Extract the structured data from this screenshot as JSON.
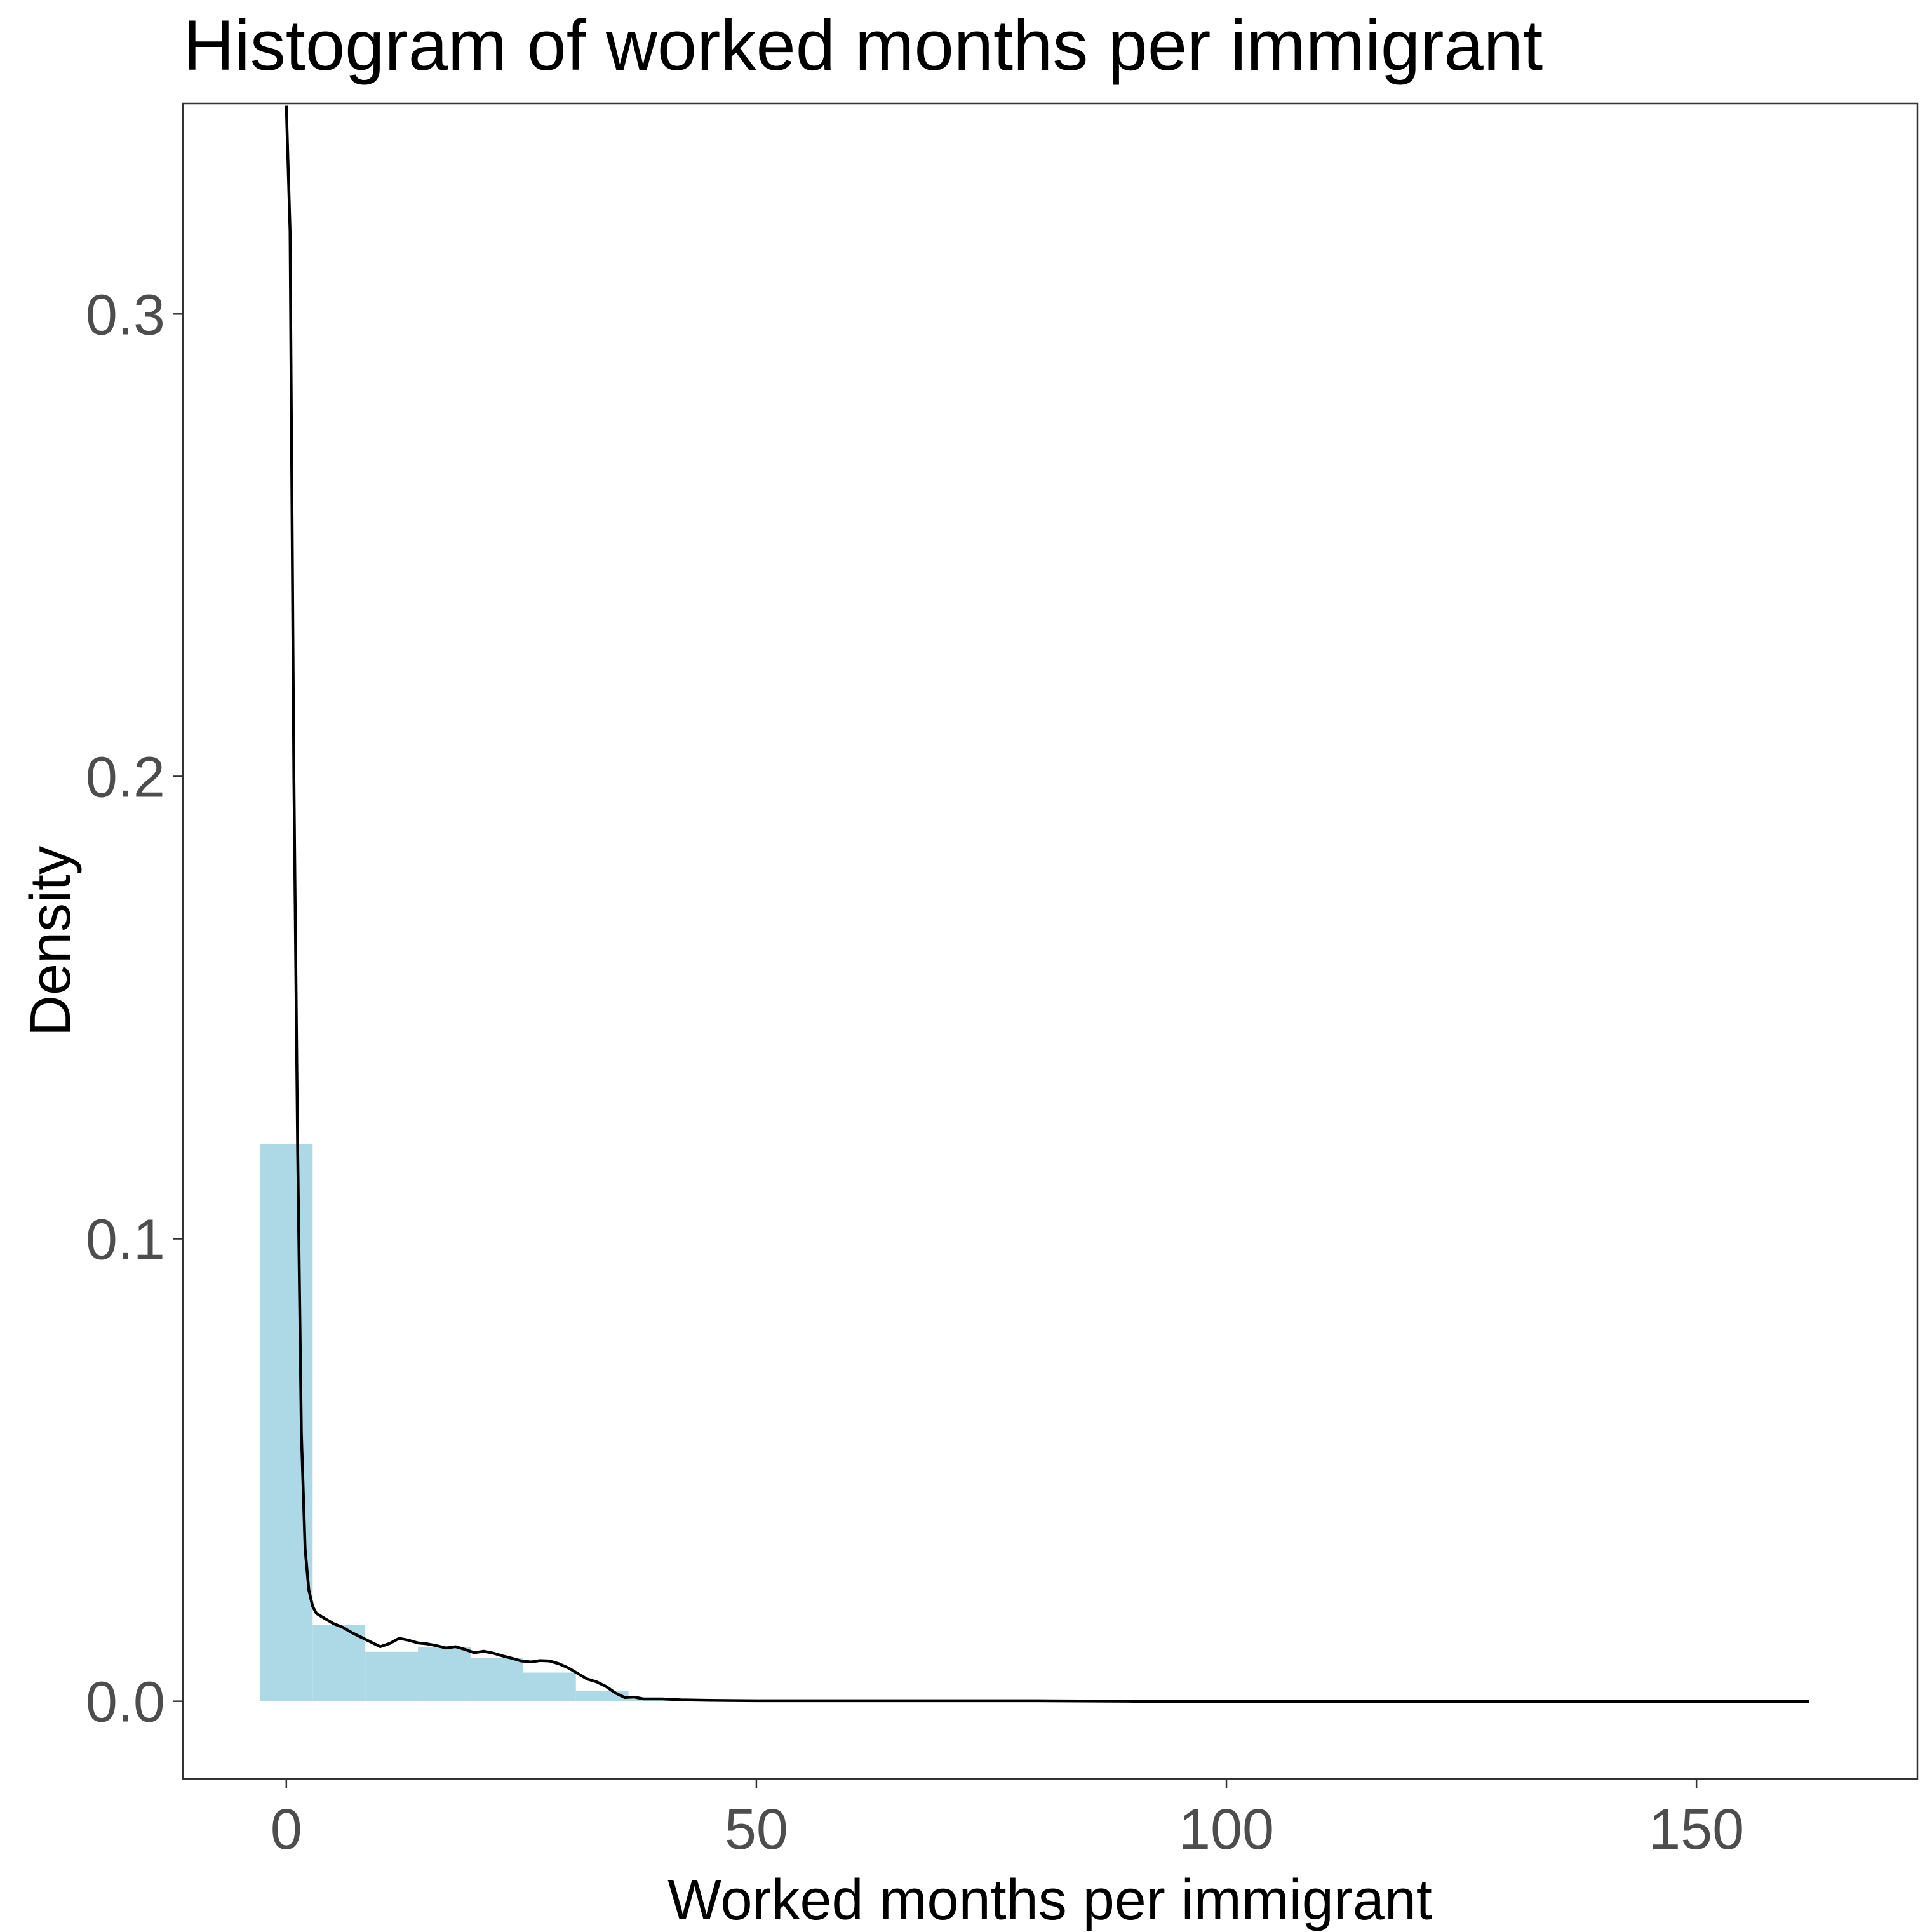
{
  "chart_data": {
    "type": "bar",
    "title": "Histogram of worked months per immigrant",
    "xlabel": "Worked months per immigrant",
    "ylabel": "Density",
    "xlim": [
      -11,
      173.5
    ],
    "ylim": [
      -0.0168,
      0.3455
    ],
    "x_ticks": [
      0,
      50,
      100,
      150
    ],
    "x_tick_labels": [
      "0",
      "50",
      "100",
      "150"
    ],
    "y_ticks": [
      0.0,
      0.1,
      0.2,
      0.3
    ],
    "y_tick_labels": [
      "0.0",
      "0.1",
      "0.2",
      "0.3"
    ],
    "grid": false,
    "bar_color": "#add8e6",
    "line_color": "#000000",
    "bin_width": 5.6,
    "bins": [
      {
        "x0": -2.8,
        "x1": 2.8,
        "density": 0.1205
      },
      {
        "x0": 2.8,
        "x1": 8.4,
        "density": 0.0165
      },
      {
        "x0": 8.4,
        "x1": 14.0,
        "density": 0.0107
      },
      {
        "x0": 14.0,
        "x1": 19.6,
        "density": 0.0117
      },
      {
        "x0": 19.6,
        "x1": 25.2,
        "density": 0.0093
      },
      {
        "x0": 25.2,
        "x1": 30.8,
        "density": 0.0062
      },
      {
        "x0": 30.8,
        "x1": 36.4,
        "density": 0.0023
      },
      {
        "x0": 36.4,
        "x1": 42.0,
        "density": 0.0005
      }
    ],
    "density_curve": {
      "x": [
        0,
        0.4,
        0.8,
        1.2,
        1.6,
        2.0,
        2.4,
        2.8,
        3.2,
        4,
        5,
        6,
        7,
        8,
        9,
        10,
        11,
        12,
        13,
        14,
        15,
        16,
        17,
        18,
        19,
        20,
        21,
        22,
        23,
        24,
        25,
        26,
        27,
        28,
        29,
        30,
        31,
        32,
        33,
        34,
        35,
        36,
        37,
        38,
        40,
        42,
        45,
        50,
        55,
        60,
        70,
        80,
        90,
        100,
        110,
        120,
        130,
        140,
        150,
        155,
        162
      ],
      "y": [
        0.345,
        0.318,
        0.2,
        0.12,
        0.058,
        0.033,
        0.024,
        0.0205,
        0.019,
        0.018,
        0.0168,
        0.016,
        0.0148,
        0.0138,
        0.0128,
        0.0118,
        0.0125,
        0.0136,
        0.0132,
        0.0126,
        0.0124,
        0.012,
        0.0115,
        0.0118,
        0.0112,
        0.0105,
        0.0108,
        0.0104,
        0.0098,
        0.0093,
        0.0087,
        0.0085,
        0.0088,
        0.0087,
        0.0081,
        0.0072,
        0.006,
        0.0048,
        0.0042,
        0.0032,
        0.0018,
        0.0008,
        0.0009,
        0.0005,
        0.0005,
        0.0003,
        0.0002,
        0.0001,
        0.0001,
        0.0001,
        0.0001,
        0.0001,
        0.0,
        0.0,
        0.0,
        0.0,
        0.0,
        0.0,
        0.0,
        0.0,
        0.0
      ]
    }
  }
}
